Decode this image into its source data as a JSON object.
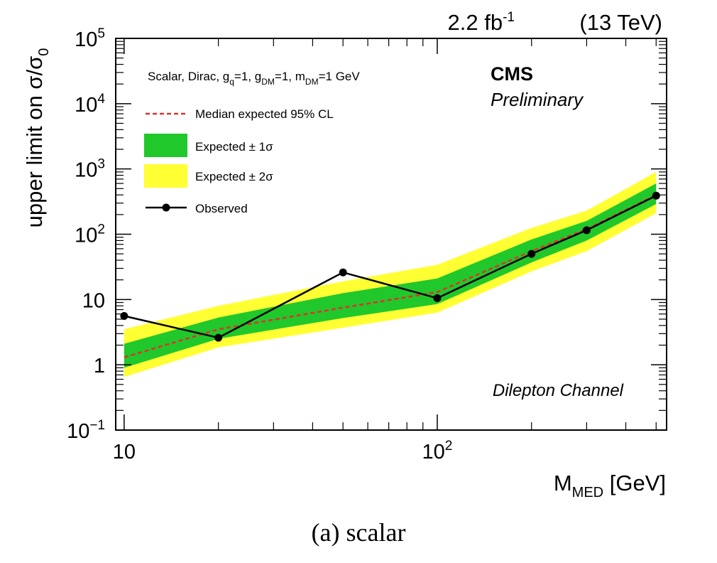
{
  "chart_data": {
    "type": "line",
    "lumi_label": "2.2 fb",
    "lumi_exponent": "-1",
    "energy_label": "(13 TeV)",
    "experiment": "CMS",
    "status": "Preliminary",
    "channel": "Dilepton Channel",
    "model": {
      "prefix": "Scalar, Dirac, g",
      "sub1": "q",
      "mid1": "=1, g",
      "sub2": "DM",
      "mid2": "=1, m",
      "sub3": "DM",
      "suffix": "=1 GeV"
    },
    "ylabel_main": "upper limit on σ/σ",
    "ylabel_sub": "0",
    "xlabel_main": "M",
    "xlabel_sub": "MED",
    "xlabel_unit": " [GeV]",
    "xscale": "log",
    "yscale": "log",
    "xlim": [
      9.4,
      540
    ],
    "ylim": [
      0.1,
      100000
    ],
    "legend": {
      "median": "Median expected 95% CL",
      "one_sigma": "Expected ± 1σ",
      "two_sigma": "Expected ± 2σ",
      "observed": "Observed"
    },
    "x": [
      10,
      20,
      50,
      100,
      200,
      300,
      500
    ],
    "observed": [
      5.6,
      2.6,
      26,
      10.5,
      50,
      115,
      390
    ],
    "expected_median": [
      1.3,
      3.5,
      7.5,
      13,
      55,
      120,
      400
    ],
    "one_sigma_low": [
      0.9,
      2.5,
      5.2,
      8.5,
      37,
      80,
      290
    ],
    "one_sigma_high": [
      2.1,
      5.3,
      12.5,
      21,
      83,
      160,
      600
    ],
    "two_sigma_low": [
      0.65,
      1.85,
      3.7,
      6.3,
      27,
      55,
      210
    ],
    "two_sigma_high": [
      3.5,
      8,
      19,
      34,
      125,
      230,
      900
    ],
    "x_tick_labels": [
      {
        "value": 10,
        "base": "10",
        "exp": ""
      },
      {
        "value": 100,
        "base": "10",
        "exp": "2"
      }
    ],
    "y_tick_labels": [
      {
        "value": 0.1,
        "base": "10",
        "exp": "−1"
      },
      {
        "value": 1,
        "base": "1",
        "exp": ""
      },
      {
        "value": 10,
        "base": "10",
        "exp": ""
      },
      {
        "value": 100,
        "base": "10",
        "exp": "2"
      },
      {
        "value": 1000,
        "base": "10",
        "exp": "3"
      },
      {
        "value": 10000,
        "base": "10",
        "exp": "4"
      },
      {
        "value": 100000,
        "base": "10",
        "exp": "5"
      }
    ],
    "colors": {
      "one_sigma": "#21c82b",
      "two_sigma": "#ffff33",
      "median": "#e0312a",
      "observed": "#000000"
    }
  },
  "caption": "(a) scalar"
}
